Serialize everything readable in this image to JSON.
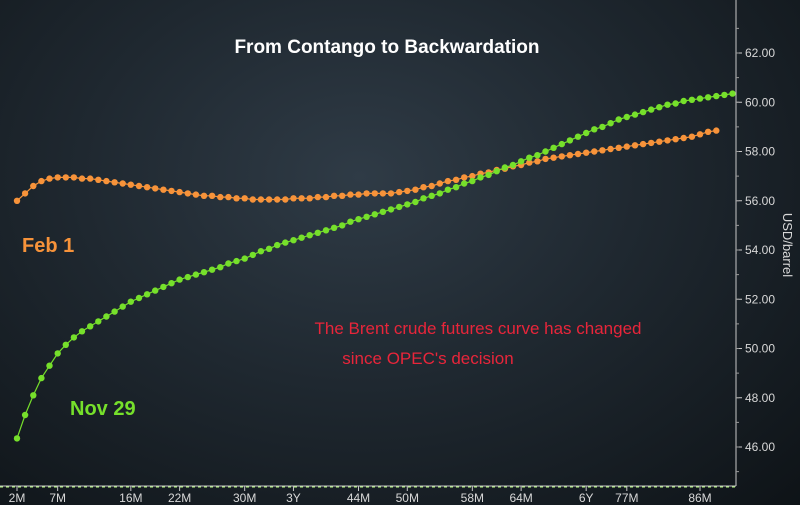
{
  "chart_data": {
    "type": "line",
    "title": "From Contango to Backwardation",
    "ylabel": "USD/barrel",
    "ylim": [
      44.4,
      64.0
    ],
    "y_ticks": [
      "62.00",
      "60.00",
      "58.00",
      "56.00",
      "54.00",
      "52.00",
      "50.00",
      "48.00",
      "46.00"
    ],
    "x_tick_labels": [
      "2M",
      "7M",
      "16M",
      "22M",
      "30M",
      "3Y",
      "44M",
      "50M",
      "58M",
      "64M",
      "6Y",
      "77M",
      "86M"
    ],
    "x_tick_positions": [
      2,
      7,
      16,
      22,
      30,
      36,
      44,
      50,
      58,
      64,
      72,
      77,
      86
    ],
    "xlim": [
      1,
      90
    ],
    "annotation": [
      "The Brent crude futures curve has changed",
      "since OPEC's decision"
    ],
    "series": [
      {
        "name": "Feb 1",
        "color": "#f7933a",
        "x_start": 2,
        "x_step": 1,
        "values": [
          56.0,
          56.3,
          56.6,
          56.8,
          56.9,
          56.95,
          56.95,
          56.95,
          56.9,
          56.9,
          56.85,
          56.8,
          56.75,
          56.7,
          56.65,
          56.6,
          56.55,
          56.5,
          56.45,
          56.4,
          56.35,
          56.3,
          56.25,
          56.2,
          56.2,
          56.15,
          56.15,
          56.1,
          56.1,
          56.05,
          56.05,
          56.05,
          56.05,
          56.05,
          56.1,
          56.1,
          56.1,
          56.15,
          56.15,
          56.2,
          56.2,
          56.25,
          56.25,
          56.3,
          56.3,
          56.3,
          56.3,
          56.35,
          56.4,
          56.45,
          56.55,
          56.6,
          56.7,
          56.8,
          56.85,
          56.95,
          57.0,
          57.1,
          57.15,
          57.25,
          57.3,
          57.4,
          57.45,
          57.55,
          57.6,
          57.7,
          57.75,
          57.8,
          57.85,
          57.9,
          57.95,
          58.0,
          58.05,
          58.1,
          58.15,
          58.2,
          58.25,
          58.3,
          58.35,
          58.4,
          58.45,
          58.5,
          58.55,
          58.6,
          58.7,
          58.8,
          58.85
        ]
      },
      {
        "name": "Nov 29",
        "color": "#76e02b",
        "x_start": 2,
        "x_step": 1,
        "values": [
          46.35,
          47.3,
          48.1,
          48.8,
          49.3,
          49.8,
          50.15,
          50.45,
          50.7,
          50.9,
          51.1,
          51.3,
          51.5,
          51.7,
          51.9,
          52.05,
          52.2,
          52.35,
          52.5,
          52.65,
          52.8,
          52.9,
          53.0,
          53.1,
          53.2,
          53.3,
          53.45,
          53.55,
          53.65,
          53.8,
          53.95,
          54.05,
          54.2,
          54.3,
          54.4,
          54.5,
          54.6,
          54.7,
          54.8,
          54.9,
          55.0,
          55.15,
          55.25,
          55.35,
          55.45,
          55.55,
          55.65,
          55.75,
          55.85,
          55.95,
          56.1,
          56.2,
          56.3,
          56.45,
          56.55,
          56.7,
          56.8,
          56.95,
          57.05,
          57.2,
          57.35,
          57.45,
          57.6,
          57.75,
          57.85,
          58.0,
          58.15,
          58.3,
          58.45,
          58.6,
          58.75,
          58.9,
          59.0,
          59.15,
          59.3,
          59.4,
          59.5,
          59.6,
          59.7,
          59.8,
          59.9,
          59.95,
          60.05,
          60.1,
          60.15,
          60.2,
          60.25,
          60.3,
          60.35
        ]
      }
    ],
    "legend_labels": {
      "feb": "Feb 1",
      "nov": "Nov 29"
    }
  }
}
